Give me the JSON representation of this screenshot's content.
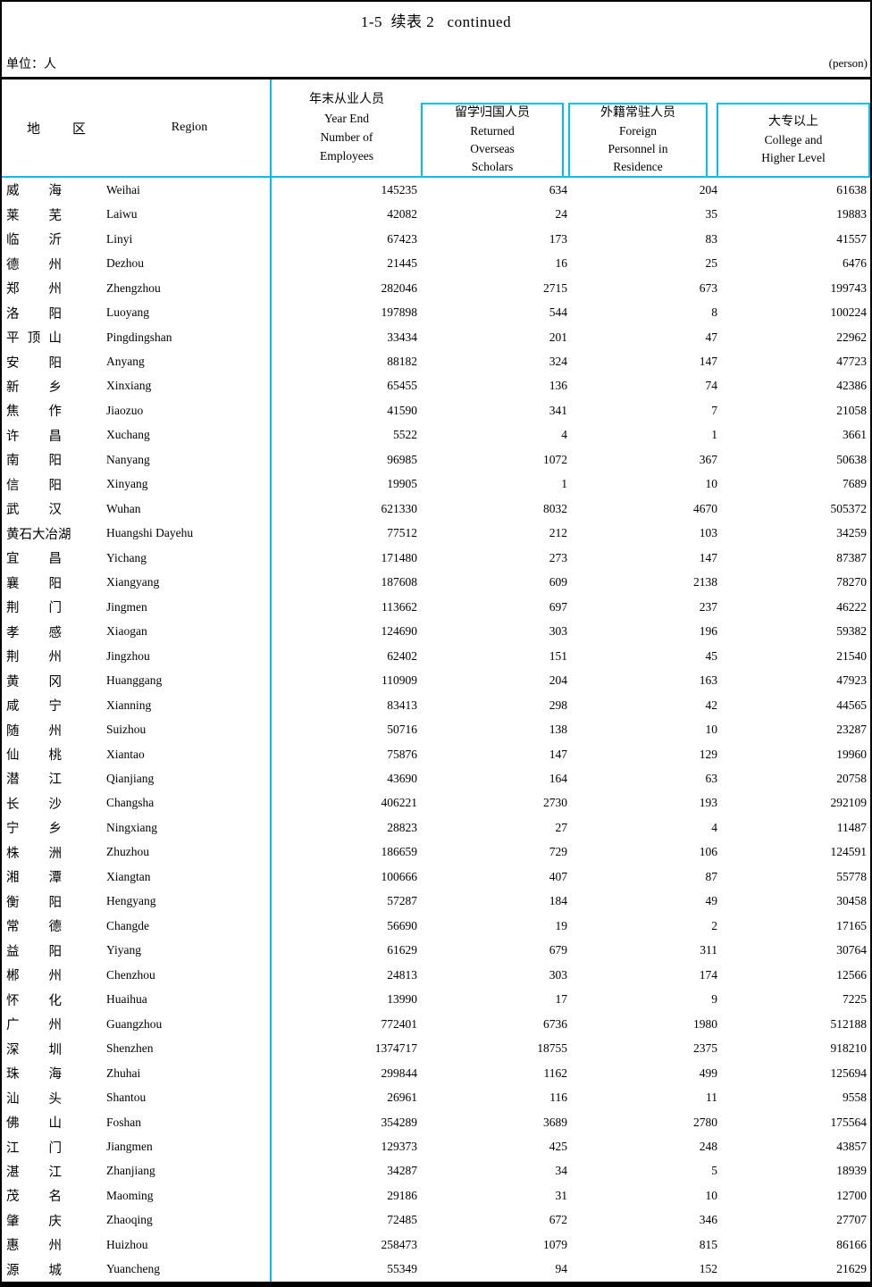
{
  "page": {
    "title": "1-5  续表 2   continued",
    "unit_label": "单位：人",
    "unit_label_en": "(person)"
  },
  "colors": {
    "accent_cyan": "#00bff0",
    "border_black": "#000000"
  },
  "table": {
    "header": {
      "region_zh": "地区",
      "region_en": "Region",
      "columns": [
        {
          "zh": "年末从业人员",
          "en_lines": [
            "Year End",
            "Number of",
            "Employees"
          ],
          "boxed": false
        },
        {
          "zh": "留学归国人员",
          "en_lines": [
            "Returned",
            "Overseas",
            "Scholars"
          ],
          "boxed": true
        },
        {
          "zh": "外籍常驻人员",
          "en_lines": [
            "Foreign",
            "Personnel in",
            "Residence"
          ],
          "boxed": true
        },
        {
          "zh": "大专以上",
          "en_lines": [
            "College and",
            "Higher Level"
          ],
          "boxed": true
        }
      ]
    },
    "rows": [
      {
        "zh": "威海",
        "en": "Weihai",
        "values": [
          145235,
          634,
          204,
          61638
        ]
      },
      {
        "zh": "莱芜",
        "en": "Laiwu",
        "values": [
          42082,
          24,
          35,
          19883
        ]
      },
      {
        "zh": "临沂",
        "en": "Linyi",
        "values": [
          67423,
          173,
          83,
          41557
        ]
      },
      {
        "zh": "德州",
        "en": "Dezhou",
        "values": [
          21445,
          16,
          25,
          6476
        ]
      },
      {
        "zh": "郑州",
        "en": "Zhengzhou",
        "values": [
          282046,
          2715,
          673,
          199743
        ]
      },
      {
        "zh": "洛阳",
        "en": "Luoyang",
        "values": [
          197898,
          544,
          8,
          100224
        ]
      },
      {
        "zh": "平顶山",
        "en": "Pingdingshan",
        "values": [
          33434,
          201,
          47,
          22962
        ]
      },
      {
        "zh": "安阳",
        "en": "Anyang",
        "values": [
          88182,
          324,
          147,
          47723
        ]
      },
      {
        "zh": "新乡",
        "en": "Xinxiang",
        "values": [
          65455,
          136,
          74,
          42386
        ]
      },
      {
        "zh": "焦作",
        "en": "Jiaozuo",
        "values": [
          41590,
          341,
          7,
          21058
        ]
      },
      {
        "zh": "许昌",
        "en": "Xuchang",
        "values": [
          5522,
          4,
          1,
          3661
        ]
      },
      {
        "zh": "南阳",
        "en": "Nanyang",
        "values": [
          96985,
          1072,
          367,
          50638
        ]
      },
      {
        "zh": "信阳",
        "en": "Xinyang",
        "values": [
          19905,
          1,
          10,
          7689
        ]
      },
      {
        "zh": "武汉",
        "en": "Wuhan",
        "values": [
          621330,
          8032,
          4670,
          505372
        ]
      },
      {
        "zh": "黄石大冶湖",
        "en": "Huangshi Dayehu",
        "values": [
          77512,
          212,
          103,
          34259
        ]
      },
      {
        "zh": "宜昌",
        "en": "Yichang",
        "values": [
          171480,
          273,
          147,
          87387
        ]
      },
      {
        "zh": "襄阳",
        "en": "Xiangyang",
        "values": [
          187608,
          609,
          2138,
          78270
        ]
      },
      {
        "zh": "荆门",
        "en": "Jingmen",
        "values": [
          113662,
          697,
          237,
          46222
        ]
      },
      {
        "zh": "孝感",
        "en": "Xiaogan",
        "values": [
          124690,
          303,
          196,
          59382
        ]
      },
      {
        "zh": "荆州",
        "en": "Jingzhou",
        "values": [
          62402,
          151,
          45,
          21540
        ]
      },
      {
        "zh": "黄冈",
        "en": "Huanggang",
        "values": [
          110909,
          204,
          163,
          47923
        ]
      },
      {
        "zh": "咸宁",
        "en": "Xianning",
        "values": [
          83413,
          298,
          42,
          44565
        ]
      },
      {
        "zh": "随州",
        "en": "Suizhou",
        "values": [
          50716,
          138,
          10,
          23287
        ]
      },
      {
        "zh": "仙桃",
        "en": "Xiantao",
        "values": [
          75876,
          147,
          129,
          19960
        ]
      },
      {
        "zh": "潜江",
        "en": "Qianjiang",
        "values": [
          43690,
          164,
          63,
          20758
        ]
      },
      {
        "zh": "长沙",
        "en": "Changsha",
        "values": [
          406221,
          2730,
          193,
          292109
        ]
      },
      {
        "zh": "宁乡",
        "en": "Ningxiang",
        "values": [
          28823,
          27,
          4,
          11487
        ]
      },
      {
        "zh": "株洲",
        "en": "Zhuzhou",
        "values": [
          186659,
          729,
          106,
          124591
        ]
      },
      {
        "zh": "湘潭",
        "en": "Xiangtan",
        "values": [
          100666,
          407,
          87,
          55778
        ]
      },
      {
        "zh": "衡阳",
        "en": "Hengyang",
        "values": [
          57287,
          184,
          49,
          30458
        ]
      },
      {
        "zh": "常德",
        "en": "Changde",
        "values": [
          56690,
          19,
          2,
          17165
        ]
      },
      {
        "zh": "益阳",
        "en": "Yiyang",
        "values": [
          61629,
          679,
          311,
          30764
        ]
      },
      {
        "zh": "郴州",
        "en": "Chenzhou",
        "values": [
          24813,
          303,
          174,
          12566
        ]
      },
      {
        "zh": "怀化",
        "en": "Huaihua",
        "values": [
          13990,
          17,
          9,
          7225
        ]
      },
      {
        "zh": "广州",
        "en": "Guangzhou",
        "values": [
          772401,
          6736,
          1980,
          512188
        ]
      },
      {
        "zh": "深圳",
        "en": "Shenzhen",
        "values": [
          1374717,
          18755,
          2375,
          918210
        ]
      },
      {
        "zh": "珠海",
        "en": "Zhuhai",
        "values": [
          299844,
          1162,
          499,
          125694
        ]
      },
      {
        "zh": "汕头",
        "en": "Shantou",
        "values": [
          26961,
          116,
          11,
          9558
        ]
      },
      {
        "zh": "佛山",
        "en": "Foshan",
        "values": [
          354289,
          3689,
          2780,
          175564
        ]
      },
      {
        "zh": "江门",
        "en": "Jiangmen",
        "values": [
          129373,
          425,
          248,
          43857
        ]
      },
      {
        "zh": "湛江",
        "en": "Zhanjiang",
        "values": [
          34287,
          34,
          5,
          18939
        ]
      },
      {
        "zh": "茂名",
        "en": "Maoming",
        "values": [
          29186,
          31,
          10,
          12700
        ]
      },
      {
        "zh": "肇庆",
        "en": "Zhaoqing",
        "values": [
          72485,
          672,
          346,
          27707
        ]
      },
      {
        "zh": "惠州",
        "en": "Huizhou",
        "values": [
          258473,
          1079,
          815,
          86166
        ]
      },
      {
        "zh": "源城",
        "en": "Yuancheng",
        "values": [
          55349,
          94,
          152,
          21629
        ]
      }
    ]
  }
}
